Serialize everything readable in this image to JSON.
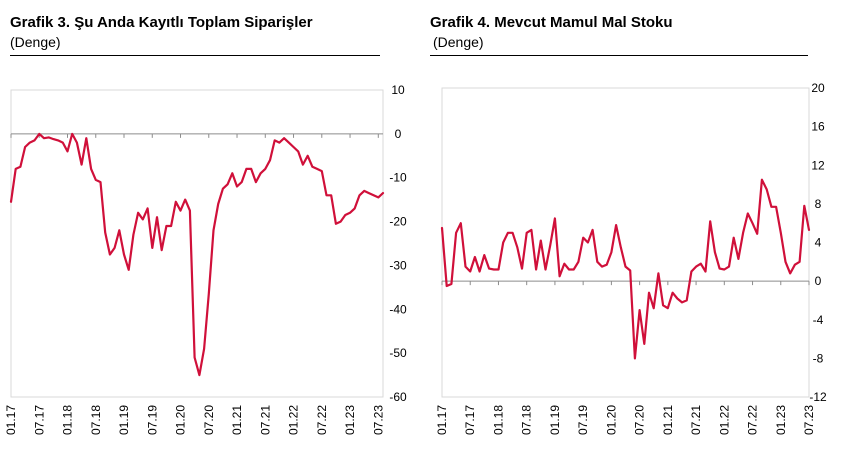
{
  "charts": [
    {
      "title": "Grafik 3. Şu Anda Kayıtlı Toplam Siparişler",
      "subtitle": "(Denge)"
    },
    {
      "title": "Grafik 4. Mevcut Mamul Mal Stoku",
      "subtitle": "(Denge)"
    }
  ],
  "chart_data": [
    {
      "type": "line",
      "title": "Grafik 3. Şu Anda Kayıtlı Toplam Siparişler",
      "subtitle": "(Denge)",
      "xlabel": "",
      "ylabel": "",
      "ylim": [
        -60,
        10
      ],
      "yticks": [
        10,
        0,
        -10,
        -20,
        -30,
        -40,
        -50,
        -60
      ],
      "y_axis_side": "right",
      "grid": false,
      "x_ticks": [
        "01.17",
        "07.17",
        "01.18",
        "07.18",
        "01.19",
        "07.19",
        "01.20",
        "07.20",
        "01.21",
        "07.21",
        "01.22",
        "07.22",
        "01.23",
        "07.23"
      ],
      "color": "#d0103a",
      "series": [
        {
          "values": [
            -15.5,
            -8,
            -7.5,
            -3,
            -2,
            -1.5,
            0,
            -1,
            -0.8,
            -1.2,
            -1.5,
            -2,
            -4,
            0,
            -2,
            -7,
            -1,
            -8,
            -10.5,
            -11,
            -22.5,
            -27.5,
            -26,
            -22,
            -27.5,
            -31,
            -23,
            -18,
            -19.5,
            -17,
            -26,
            -19,
            -26.5,
            -21,
            -21,
            -15.5,
            -17.5,
            -15,
            -17.5,
            -51,
            -55,
            -49,
            -36.5,
            -22,
            -16,
            -12.5,
            -11.5,
            -9,
            -12,
            -11,
            -8,
            -8,
            -11,
            -9,
            -8,
            -6,
            -1.5,
            -2,
            -1,
            -2,
            -3,
            -4,
            -7,
            -5,
            -7.5,
            -8,
            -8.5,
            -14,
            -14,
            -20.5,
            -20,
            -18.5,
            -18,
            -17,
            -14,
            -13,
            -13.5,
            -14,
            -14.5,
            -13.5
          ]
        }
      ]
    },
    {
      "type": "line",
      "title": "Grafik 4. Mevcut Mamul Mal Stoku",
      "subtitle": "(Denge)",
      "xlabel": "",
      "ylabel": "",
      "ylim": [
        -12,
        20
      ],
      "yticks": [
        20,
        16,
        12,
        8,
        4,
        0,
        -4,
        -8,
        -12
      ],
      "y_axis_side": "right",
      "grid": false,
      "x_ticks": [
        "01.17",
        "07.17",
        "01.18",
        "07.18",
        "01.19",
        "07.19",
        "01.20",
        "07.20",
        "01.21",
        "07.21",
        "01.22",
        "07.22",
        "01.23",
        "07.23"
      ],
      "color": "#d0103a",
      "series": [
        {
          "values": [
            5.5,
            -0.5,
            -0.3,
            5,
            6,
            1.5,
            1,
            2.5,
            1,
            2.7,
            1.3,
            1.2,
            1.2,
            4,
            5,
            5,
            3.5,
            1.3,
            5,
            5.3,
            1.2,
            4.2,
            1.2,
            3.7,
            6.5,
            0.5,
            1.8,
            1.2,
            1.2,
            2,
            4.5,
            4,
            5.3,
            2,
            1.5,
            1.7,
            3,
            5.8,
            3.5,
            1.5,
            1.1,
            -8,
            -3,
            -6.5,
            -1.2,
            -2.8,
            0.8,
            -2.5,
            -2.8,
            -1.2,
            -1.8,
            -2.2,
            -2,
            1,
            1.5,
            1.8,
            1,
            6.2,
            3,
            1.3,
            1.2,
            1.5,
            4.5,
            2.3,
            5,
            7,
            6,
            4.9,
            10.5,
            9.5,
            7.7,
            7.7,
            5,
            2,
            0.8,
            1.7,
            2,
            7.8,
            5.3
          ]
        }
      ]
    }
  ]
}
